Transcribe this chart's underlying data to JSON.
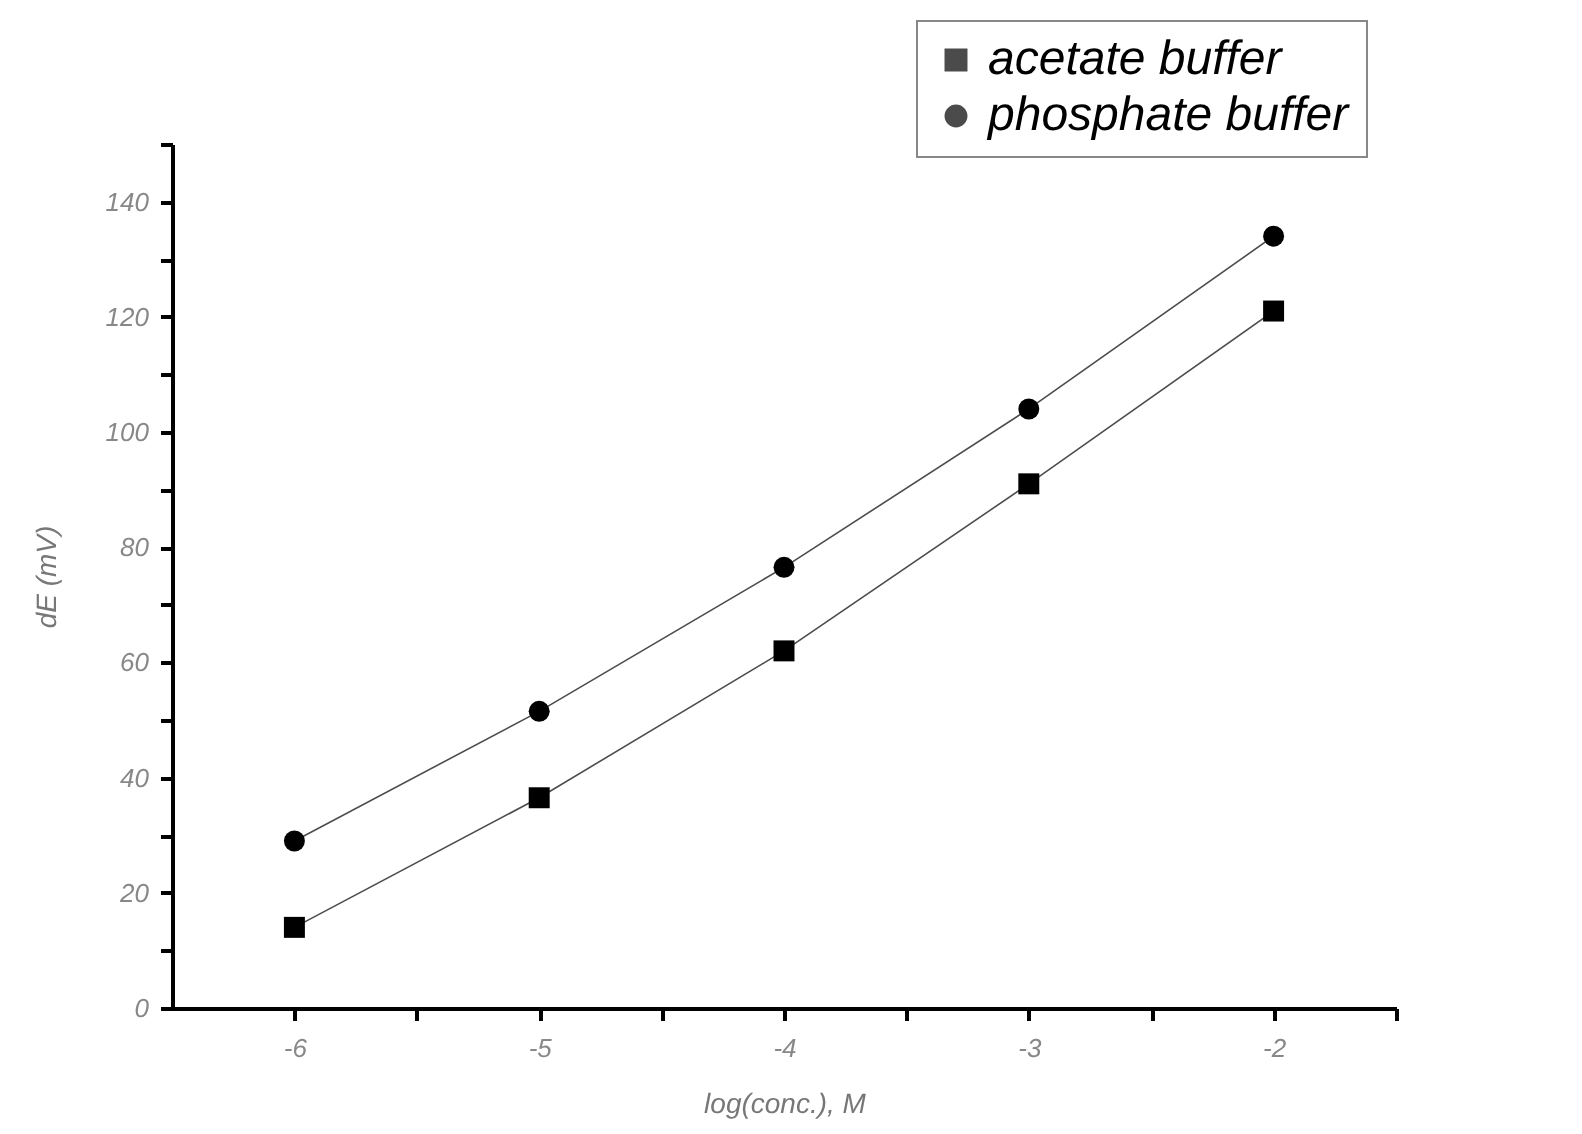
{
  "chart_data": {
    "type": "line",
    "xlabel": "log(conc.), M",
    "ylabel": "dE (mV)",
    "x": [
      -6,
      -5,
      -4,
      -3,
      -2
    ],
    "series": [
      {
        "name": "acetate buffer",
        "color": "#000000",
        "marker": "square",
        "values": [
          14,
          36.5,
          62,
          91,
          121
        ]
      },
      {
        "name": "phosphate buffer",
        "color": "#000000",
        "marker": "circle",
        "values": [
          29,
          51.5,
          76.5,
          104,
          134
        ]
      }
    ],
    "xlim": [
      -6.5,
      -1.5
    ],
    "xticks": [
      -6,
      {
        "value": -5.5,
        "label": null
      },
      -5,
      {
        "value": -4.5,
        "label": null
      },
      -4,
      {
        "value": -3.5,
        "label": null
      },
      -3,
      {
        "value": -2.5,
        "label": null
      },
      -2,
      {
        "value": -1.5,
        "label": null
      }
    ],
    "ylim": [
      0,
      150
    ],
    "yticks": [
      0,
      {
        "value": 10,
        "label": null
      },
      20,
      {
        "value": 30,
        "label": null
      },
      40,
      {
        "value": 50,
        "label": null
      },
      60,
      {
        "value": 70,
        "label": null
      },
      80,
      {
        "value": 90,
        "label": null
      },
      100,
      {
        "value": 110,
        "label": null
      },
      120,
      {
        "value": 130,
        "label": null
      },
      140,
      {
        "value": 150,
        "label": null
      }
    ],
    "legend": "top right",
    "grid": false,
    "line_style": "solid"
  }
}
